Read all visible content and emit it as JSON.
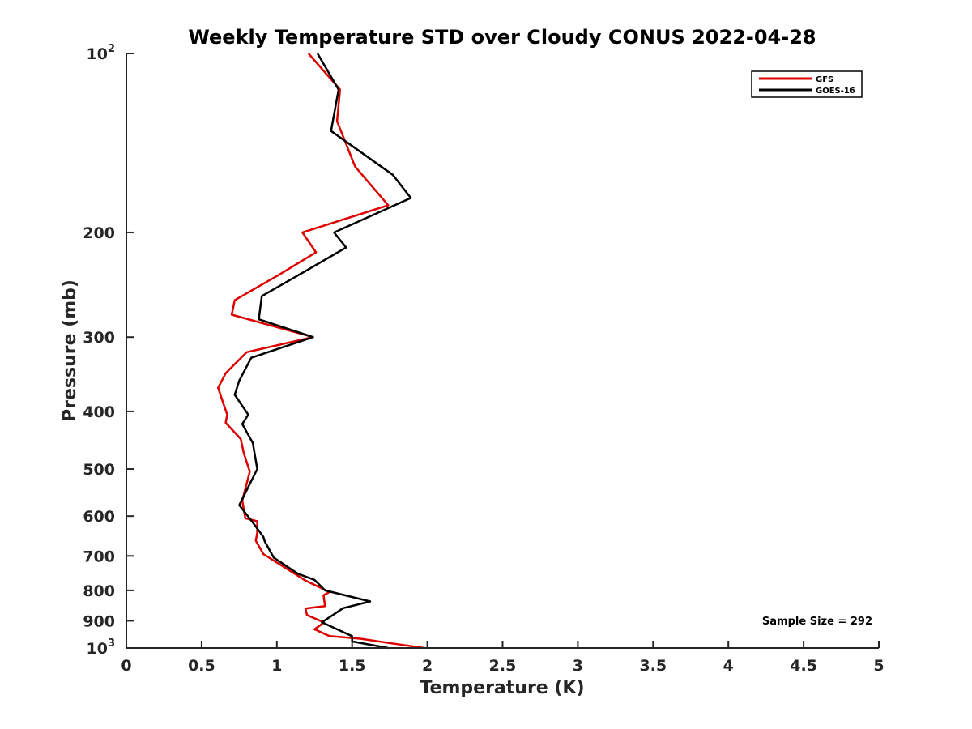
{
  "chart_data": {
    "type": "line",
    "orientation": "vertical-profile",
    "title": "Weekly Temperature STD over Cloudy CONUS 2022-04-28",
    "xlabel": "Temperature (K)",
    "ylabel": "Pressure (mb)",
    "xlim": [
      0,
      5
    ],
    "ylim": [
      100,
      1000
    ],
    "y_scale": "log",
    "y_reversed": true,
    "x_ticks": [
      "0",
      "0.5",
      "1",
      "1.5",
      "2",
      "2.5",
      "3",
      "3.5",
      "4",
      "4.5",
      "5"
    ],
    "x_tick_values": [
      0,
      0.5,
      1,
      1.5,
      2,
      2.5,
      3,
      3.5,
      4,
      4.5,
      5
    ],
    "y_ticks": [
      {
        "value": 100,
        "label": "10",
        "sup": "2"
      },
      {
        "value": 200,
        "label": "200",
        "sup": ""
      },
      {
        "value": 300,
        "label": "300",
        "sup": ""
      },
      {
        "value": 400,
        "label": "400",
        "sup": ""
      },
      {
        "value": 500,
        "label": "500",
        "sup": ""
      },
      {
        "value": 600,
        "label": "600",
        "sup": ""
      },
      {
        "value": 700,
        "label": "700",
        "sup": ""
      },
      {
        "value": 800,
        "label": "800",
        "sup": ""
      },
      {
        "value": 900,
        "label": "900",
        "sup": ""
      },
      {
        "value": 1000,
        "label": "10",
        "sup": "3"
      }
    ],
    "grid": false,
    "legend_position": "top-right",
    "annotation": "Sample Size = 292",
    "series": [
      {
        "name": "GFS",
        "color": "#dd0000",
        "points": [
          [
            1.21,
            100
          ],
          [
            1.42,
            115
          ],
          [
            1.4,
            130
          ],
          [
            1.52,
            155
          ],
          [
            1.74,
            180
          ],
          [
            1.17,
            200
          ],
          [
            1.26,
            216
          ],
          [
            1.01,
            236
          ],
          [
            0.72,
            260
          ],
          [
            0.7,
            275
          ],
          [
            1.24,
            300
          ],
          [
            0.8,
            318
          ],
          [
            0.66,
            345
          ],
          [
            0.61,
            365
          ],
          [
            0.64,
            385
          ],
          [
            0.67,
            405
          ],
          [
            0.66,
            418
          ],
          [
            0.76,
            445
          ],
          [
            0.78,
            470
          ],
          [
            0.82,
            505
          ],
          [
            0.77,
            565
          ],
          [
            0.79,
            605
          ],
          [
            0.87,
            612
          ],
          [
            0.87,
            640
          ],
          [
            0.86,
            660
          ],
          [
            0.91,
            695
          ],
          [
            1.19,
            770
          ],
          [
            1.35,
            805
          ],
          [
            1.31,
            815
          ],
          [
            1.32,
            850
          ],
          [
            1.19,
            858
          ],
          [
            1.2,
            880
          ],
          [
            1.31,
            905
          ],
          [
            1.29,
            915
          ],
          [
            1.25,
            930
          ],
          [
            1.35,
            955
          ],
          [
            1.56,
            965
          ],
          [
            1.76,
            982
          ],
          [
            1.98,
            1000
          ]
        ]
      },
      {
        "name": "GOES-16",
        "color": "#000000",
        "points": [
          [
            1.27,
            100
          ],
          [
            1.41,
            115
          ],
          [
            1.36,
            135
          ],
          [
            1.77,
            160
          ],
          [
            1.89,
            175
          ],
          [
            1.38,
            200
          ],
          [
            1.46,
            212
          ],
          [
            1.13,
            237
          ],
          [
            0.9,
            256
          ],
          [
            0.88,
            280
          ],
          [
            1.24,
            300
          ],
          [
            0.83,
            325
          ],
          [
            0.75,
            355
          ],
          [
            0.72,
            375
          ],
          [
            0.81,
            405
          ],
          [
            0.77,
            420
          ],
          [
            0.84,
            452
          ],
          [
            0.87,
            500
          ],
          [
            0.75,
            575
          ],
          [
            0.84,
            615
          ],
          [
            0.91,
            650
          ],
          [
            0.92,
            662
          ],
          [
            0.98,
            705
          ],
          [
            1.14,
            750
          ],
          [
            1.25,
            768
          ],
          [
            1.32,
            800
          ],
          [
            1.62,
            835
          ],
          [
            1.44,
            857
          ],
          [
            1.3,
            905
          ],
          [
            1.46,
            945
          ],
          [
            1.5,
            955
          ],
          [
            1.5,
            975
          ],
          [
            1.74,
            1000
          ]
        ]
      }
    ]
  }
}
